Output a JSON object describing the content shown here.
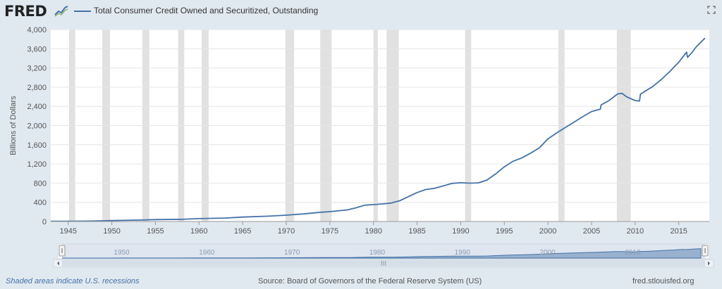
{
  "header": {
    "logo_text": "FRED",
    "series_title": "Total Consumer Credit Owned and Securitized, Outstanding"
  },
  "footer": {
    "recession_note": "Shaded areas indicate U.S. recessions",
    "source": "Source: Board of Governors of the Federal Reserve System (US)",
    "site": "fred.stlouisfed.org"
  },
  "colors": {
    "series": "#4572a7",
    "recession": "#e1e1e1",
    "background": "#e1e9f0",
    "plot": "#ffffff"
  },
  "navigator": {
    "ticks": [
      "1950",
      "1960",
      "1970",
      "1980",
      "1990",
      "2000",
      "2010"
    ],
    "scroll_grip": "III"
  },
  "chart_data": {
    "type": "line",
    "title": "Total Consumer Credit Owned and Securitized, Outstanding",
    "xlabel": "",
    "ylabel": "Billions of Dollars",
    "xlim": [
      1943.0,
      2018.5
    ],
    "ylim": [
      0,
      4000
    ],
    "grid": "horizontal",
    "xticks": [
      1945,
      1950,
      1955,
      1960,
      1965,
      1970,
      1975,
      1980,
      1985,
      1990,
      1995,
      2000,
      2005,
      2010,
      2015
    ],
    "yticks": [
      0,
      400,
      800,
      1200,
      1600,
      2000,
      2400,
      2800,
      3200,
      3600,
      4000
    ],
    "ytick_labels": [
      "0",
      "400",
      "800",
      "1,200",
      "1,600",
      "2,000",
      "2,400",
      "2,800",
      "3,200",
      "3,600",
      "4,000"
    ],
    "recessions": [
      [
        1945.1,
        1945.8
      ],
      [
        1948.9,
        1949.8
      ],
      [
        1953.5,
        1954.3
      ],
      [
        1957.6,
        1958.3
      ],
      [
        1960.3,
        1961.1
      ],
      [
        1969.9,
        1970.9
      ],
      [
        1973.9,
        1975.2
      ],
      [
        1980.0,
        1980.5
      ],
      [
        1981.5,
        1982.9
      ],
      [
        1990.5,
        1991.2
      ],
      [
        2001.2,
        2001.9
      ],
      [
        2007.9,
        2009.5
      ]
    ],
    "series": [
      {
        "name": "Total Consumer Credit Owned and Securitized, Outstanding",
        "x": [
          1943.0,
          1945.0,
          1948.0,
          1950.0,
          1953.0,
          1955.0,
          1958.0,
          1960.0,
          1963.0,
          1965.0,
          1968.0,
          1970.0,
          1972.0,
          1974.0,
          1975.0,
          1977.0,
          1978.0,
          1979.0,
          1980.0,
          1981.0,
          1982.0,
          1983.0,
          1984.0,
          1985.0,
          1986.0,
          1987.0,
          1988.0,
          1989.0,
          1990.0,
          1991.0,
          1992.0,
          1993.0,
          1994.0,
          1995.0,
          1996.0,
          1997.0,
          1998.0,
          1999.0,
          2000.0,
          2001.0,
          2002.0,
          2003.0,
          2004.0,
          2005.0,
          2006.0,
          2006.1,
          2007.0,
          2008.0,
          2008.5,
          2009.0,
          2010.0,
          2010.5,
          2010.6,
          2011.0,
          2012.0,
          2013.0,
          2014.0,
          2015.0,
          2015.9,
          2016.0,
          2016.5,
          2017.0,
          2018.0
        ],
        "y": [
          6,
          6,
          10,
          21,
          30,
          39,
          46,
          60,
          72,
          93,
          112,
          132,
          158,
          193,
          205,
          242,
          286,
          340,
          352,
          367,
          384,
          432,
          517,
          604,
          667,
          691,
          741,
          794,
          808,
          799,
          804,
          863,
          990,
          1140,
          1256,
          1324,
          1422,
          1532,
          1722,
          1845,
          1960,
          2072,
          2184,
          2292,
          2340,
          2430,
          2520,
          2660,
          2670,
          2600,
          2520,
          2510,
          2650,
          2700,
          2810,
          2960,
          3130,
          3320,
          3530,
          3420,
          3520,
          3640,
          3820
        ]
      }
    ]
  }
}
